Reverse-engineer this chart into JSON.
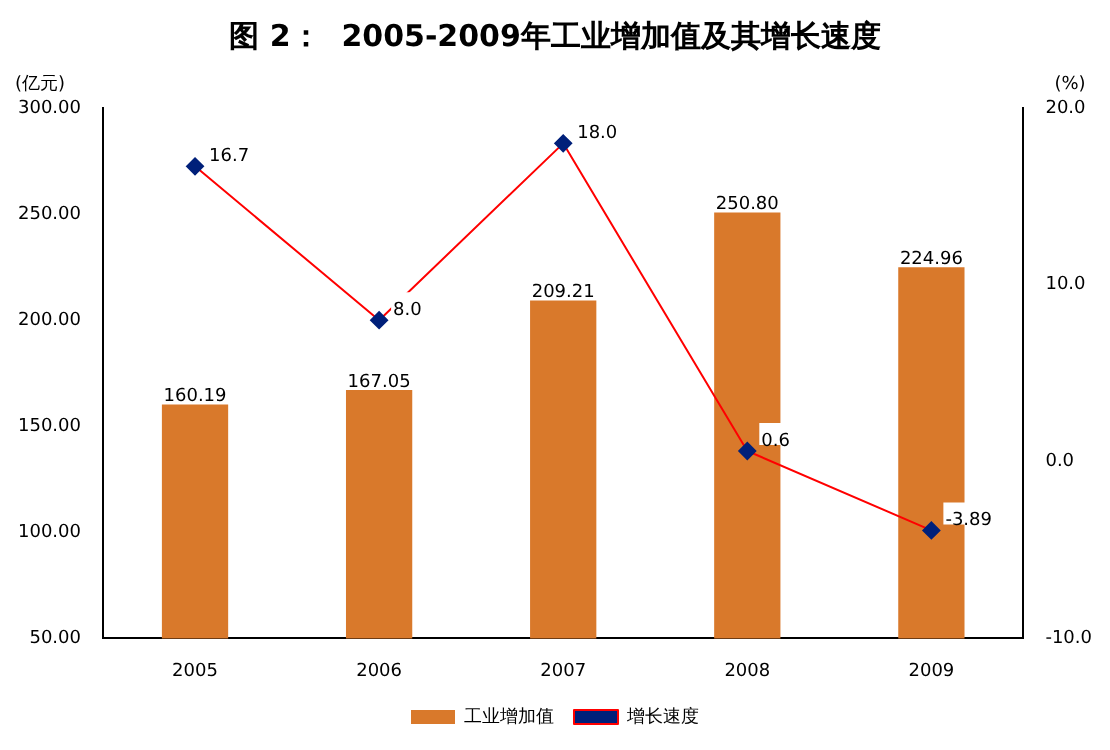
{
  "chart_data": {
    "type": "bar",
    "title": "图 2：  2005-2009年工业增加值及其增长速度",
    "ylabel": "(亿元)",
    "y2label": "(%)",
    "categories": [
      "2005",
      "2006",
      "2007",
      "2008",
      "2009"
    ],
    "series": [
      {
        "name": "工业增加值",
        "color": "#d9792b",
        "values": [
          160.19,
          167.05,
          209.21,
          250.8,
          224.96
        ],
        "value_labels": [
          "160.19",
          "167.05",
          "209.21",
          "250.80",
          "224.96"
        ]
      },
      {
        "name": "增长速度",
        "type": "line",
        "axis": "y2",
        "color": "#ff0000",
        "marker": "diamond",
        "values": [
          16.7,
          8.0,
          18.0,
          0.6,
          -3.89
        ],
        "value_labels": [
          "16.7",
          "8.0",
          "18.0",
          "0.6",
          "-3.89"
        ]
      }
    ],
    "ylim": [
      50,
      300
    ],
    "yticks": [
      {
        "value": 50,
        "label": "50.00"
      },
      {
        "value": 100,
        "label": "100.00"
      },
      {
        "value": 150,
        "label": "150.00"
      },
      {
        "value": 200,
        "label": "200.00"
      },
      {
        "value": 250,
        "label": "250.00"
      },
      {
        "value": 300,
        "label": "300.00"
      }
    ],
    "y2lim": [
      -10,
      20
    ],
    "y2ticks": [
      {
        "value": -10,
        "label": "-10.0"
      },
      {
        "value": 0,
        "label": "0.0"
      },
      {
        "value": 10,
        "label": "10.0"
      },
      {
        "value": 20,
        "label": "20.0"
      }
    ],
    "grid": false,
    "legend": "bottom"
  }
}
